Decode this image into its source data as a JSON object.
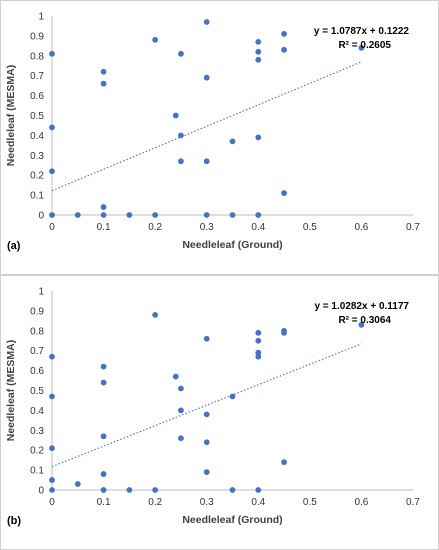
{
  "chart_data": [
    {
      "type": "scatter",
      "panel_label": "(a)",
      "xlabel": "Needleleaf (Ground)",
      "ylabel": "Needleleaf (MESMA)",
      "xlim": [
        0,
        0.7
      ],
      "ylim": [
        0,
        1
      ],
      "xticks": [
        "0",
        "0.1",
        "0.2",
        "0.3",
        "0.4",
        "0.5",
        "0.6",
        "0.7"
      ],
      "yticks": [
        "0",
        "0.1",
        "0.2",
        "0.3",
        "0.4",
        "0.5",
        "0.6",
        "0.7",
        "0.8",
        "0.9",
        "1"
      ],
      "grid": false,
      "marker_color": "#4472c4",
      "trendline": {
        "slope": 1.0787,
        "intercept": 0.1222,
        "x_range": [
          0,
          0.6
        ],
        "style": "dotted"
      },
      "equation": "y = 1.0787x + 0.1222",
      "r2": "R² = 0.2605",
      "points": [
        {
          "x": 0,
          "y": 0.81
        },
        {
          "x": 0,
          "y": 0.44
        },
        {
          "x": 0,
          "y": 0.22
        },
        {
          "x": 0,
          "y": 0
        },
        {
          "x": 0.05,
          "y": 0
        },
        {
          "x": 0.1,
          "y": 0.72
        },
        {
          "x": 0.1,
          "y": 0.66
        },
        {
          "x": 0.1,
          "y": 0.04
        },
        {
          "x": 0.1,
          "y": 0
        },
        {
          "x": 0.15,
          "y": 0
        },
        {
          "x": 0.2,
          "y": 0.88
        },
        {
          "x": 0.2,
          "y": 0
        },
        {
          "x": 0.24,
          "y": 0.5
        },
        {
          "x": 0.25,
          "y": 0.81
        },
        {
          "x": 0.25,
          "y": 0.4
        },
        {
          "x": 0.25,
          "y": 0.27
        },
        {
          "x": 0.3,
          "y": 0.97
        },
        {
          "x": 0.3,
          "y": 0.69
        },
        {
          "x": 0.3,
          "y": 0.27
        },
        {
          "x": 0.3,
          "y": 0
        },
        {
          "x": 0.35,
          "y": 0.37
        },
        {
          "x": 0.35,
          "y": 0
        },
        {
          "x": 0.4,
          "y": 0.87
        },
        {
          "x": 0.4,
          "y": 0.82
        },
        {
          "x": 0.4,
          "y": 0.78
        },
        {
          "x": 0.4,
          "y": 0.39
        },
        {
          "x": 0.4,
          "y": 0
        },
        {
          "x": 0.45,
          "y": 0.91
        },
        {
          "x": 0.45,
          "y": 0.83
        },
        {
          "x": 0.45,
          "y": 0.11
        },
        {
          "x": 0.6,
          "y": 0.84
        }
      ]
    },
    {
      "type": "scatter",
      "panel_label": "(b)",
      "xlabel": "Needleleaf (Ground)",
      "ylabel": "Needleleaf (MESMA)",
      "xlim": [
        0,
        0.7
      ],
      "ylim": [
        0,
        1
      ],
      "xticks": [
        "0",
        "0.1",
        "0.2",
        "0.3",
        "0.4",
        "0.5",
        "0.6",
        "0.7"
      ],
      "yticks": [
        "0",
        "0.1",
        "0.2",
        "0.3",
        "0.4",
        "0.5",
        "0.6",
        "0.7",
        "0.8",
        "0.9",
        "1"
      ],
      "grid": false,
      "marker_color": "#4472c4",
      "trendline": {
        "slope": 1.0282,
        "intercept": 0.1177,
        "x_range": [
          0,
          0.6
        ],
        "style": "dotted"
      },
      "equation": "y = 1.0282x + 0.1177",
      "r2": "R² = 0.3064",
      "points": [
        {
          "x": 0,
          "y": 0.67
        },
        {
          "x": 0,
          "y": 0.47
        },
        {
          "x": 0,
          "y": 0.21
        },
        {
          "x": 0,
          "y": 0.05
        },
        {
          "x": 0,
          "y": 0
        },
        {
          "x": 0.05,
          "y": 0.03
        },
        {
          "x": 0.1,
          "y": 0.62
        },
        {
          "x": 0.1,
          "y": 0.54
        },
        {
          "x": 0.1,
          "y": 0.27
        },
        {
          "x": 0.1,
          "y": 0.08
        },
        {
          "x": 0.1,
          "y": 0
        },
        {
          "x": 0.15,
          "y": 0
        },
        {
          "x": 0.2,
          "y": 0.88
        },
        {
          "x": 0.2,
          "y": 0
        },
        {
          "x": 0.24,
          "y": 0.57
        },
        {
          "x": 0.25,
          "y": 0.51
        },
        {
          "x": 0.25,
          "y": 0.4
        },
        {
          "x": 0.25,
          "y": 0.26
        },
        {
          "x": 0.3,
          "y": 0.76
        },
        {
          "x": 0.3,
          "y": 0.38
        },
        {
          "x": 0.3,
          "y": 0.24
        },
        {
          "x": 0.3,
          "y": 0.09
        },
        {
          "x": 0.35,
          "y": 0.47
        },
        {
          "x": 0.35,
          "y": 0
        },
        {
          "x": 0.4,
          "y": 0.79
        },
        {
          "x": 0.4,
          "y": 0.75
        },
        {
          "x": 0.4,
          "y": 0.69
        },
        {
          "x": 0.4,
          "y": 0.67
        },
        {
          "x": 0.4,
          "y": 0
        },
        {
          "x": 0.45,
          "y": 0.8
        },
        {
          "x": 0.45,
          "y": 0.79
        },
        {
          "x": 0.45,
          "y": 0.14
        },
        {
          "x": 0.6,
          "y": 0.83
        }
      ]
    }
  ]
}
